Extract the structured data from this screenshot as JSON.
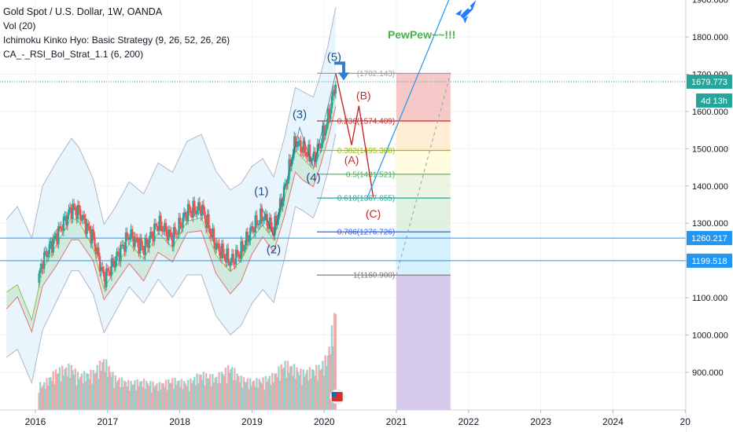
{
  "legend": {
    "title": "Gold Spot / U.S. Dollar, 1W, OANDA",
    "vol": "Vol (20)",
    "ichimoku": "Ichimoku Kinko Hyo: Basic Strategy (9, 26, 52, 26, 26)",
    "rsi": "CA_-_RSI_Bol_Strat_1.1 (6, 200)"
  },
  "colors": {
    "up": "#26a69a",
    "down": "#ef5350",
    "fib_0": "#9e9e9e",
    "fib_0236": "#c62828",
    "fib_0382": "#a0c000",
    "fib_05": "#4caf50",
    "fib_0618": "#26a69a",
    "fib_0786": "#2962ff",
    "fib_1": "#757575",
    "wave_blue": "#1a4f8a",
    "wave_red": "#c62828",
    "pew": "#4caf50",
    "hline": "#2196f3"
  },
  "annotations": {
    "pew_text": "PewPew~~!!!",
    "wave5": "(5)",
    "wave3": "(3)",
    "wave1": "(1)",
    "wave4": "(4)",
    "wave2": "(2)",
    "waveA": "(A)",
    "waveB": "(B)",
    "waveC": "(C)"
  },
  "badges": {
    "price": "1679.773",
    "countdown": "4d 13h",
    "h1": "1260.217",
    "h2": "1199.518"
  },
  "chart_data": {
    "type": "candlestick",
    "title": "Gold Spot / U.S. Dollar, 1W, OANDA",
    "y_range": [
      850,
      1980
    ],
    "x_range": [
      2015.6,
      2025.05
    ],
    "y_ticks": [
      "1900.000",
      "1800.000",
      "1700.000",
      "1600.000",
      "1500.000",
      "1400.000",
      "1300.000",
      "1200.000",
      "1100.000",
      "1000.000",
      "900.000"
    ],
    "x_ticks": [
      "2016",
      "2017",
      "2018",
      "2019",
      "2020",
      "2021",
      "2022",
      "2023",
      "2024",
      "20"
    ],
    "current_price": 1679.773,
    "horizontal_lines": [
      1260.217,
      1199.518
    ],
    "fib_levels": [
      {
        "label": "(1702.143)",
        "ratio": 0,
        "price": 1702.143
      },
      {
        "label": "0.236(1574.409)",
        "ratio": 0.236,
        "price": 1574.409
      },
      {
        "label": "0.382(1495.388)",
        "ratio": 0.382,
        "price": 1495.388
      },
      {
        "label": "0.5(1431.521)",
        "ratio": 0.5,
        "price": 1431.521
      },
      {
        "label": "0.618(1367.655)",
        "ratio": 0.618,
        "price": 1367.655
      },
      {
        "label": "0.786(1276.726)",
        "ratio": 0.786,
        "price": 1276.726
      },
      {
        "label": "1(1160.900)",
        "ratio": 1,
        "price": 1160.9
      }
    ],
    "elliott_waves": [
      {
        "label": "(1)",
        "t": 2019.13,
        "price": 1346
      },
      {
        "label": "(2)",
        "t": 2019.3,
        "price": 1266
      },
      {
        "label": "(3)",
        "t": 2019.66,
        "price": 1557
      },
      {
        "label": "(4)",
        "t": 2019.85,
        "price": 1450
      },
      {
        "label": "(5)",
        "t": 2020.16,
        "price": 1702
      },
      {
        "label": "(A)",
        "t": 2020.38,
        "price": 1510
      },
      {
        "label": "(B)",
        "t": 2020.48,
        "price": 1615
      },
      {
        "label": "(C)",
        "t": 2020.68,
        "price": 1370
      }
    ],
    "trend_line": [
      {
        "t": 2020.6,
        "price": 1370
      },
      {
        "t": 2021.92,
        "price": 1990
      }
    ],
    "close_series": {
      "t": [
        2015.6,
        2015.75,
        2015.95,
        2016.1,
        2016.3,
        2016.5,
        2016.6,
        2016.8,
        2016.95,
        2017.1,
        2017.3,
        2017.5,
        2017.7,
        2017.9,
        2018.1,
        2018.3,
        2018.5,
        2018.7,
        2018.85,
        2019.0,
        2019.15,
        2019.3,
        2019.45,
        2019.6,
        2019.7,
        2019.85,
        2019.95,
        2020.05,
        2020.16
      ],
      "price": [
        1140,
        1160,
        1065,
        1200,
        1270,
        1340,
        1330,
        1260,
        1150,
        1200,
        1270,
        1230,
        1300,
        1260,
        1330,
        1340,
        1240,
        1195,
        1225,
        1285,
        1320,
        1280,
        1390,
        1520,
        1500,
        1470,
        1515,
        1580,
        1680
      ]
    },
    "volume_series": {
      "t": [
        2015.6,
        2015.75,
        2015.95,
        2016.1,
        2016.3,
        2016.5,
        2016.6,
        2016.8,
        2016.95,
        2017.1,
        2017.3,
        2017.5,
        2017.7,
        2017.9,
        2018.1,
        2018.3,
        2018.5,
        2018.7,
        2018.85,
        2019.0,
        2019.15,
        2019.3,
        2019.45,
        2019.6,
        2019.7,
        2019.85,
        2019.95,
        2020.05,
        2020.16
      ],
      "volume": [
        22,
        28,
        40,
        35,
        55,
        60,
        48,
        52,
        70,
        45,
        38,
        40,
        35,
        42,
        38,
        50,
        45,
        60,
        44,
        40,
        42,
        48,
        65,
        58,
        52,
        56,
        60,
        75,
        140
      ]
    }
  }
}
